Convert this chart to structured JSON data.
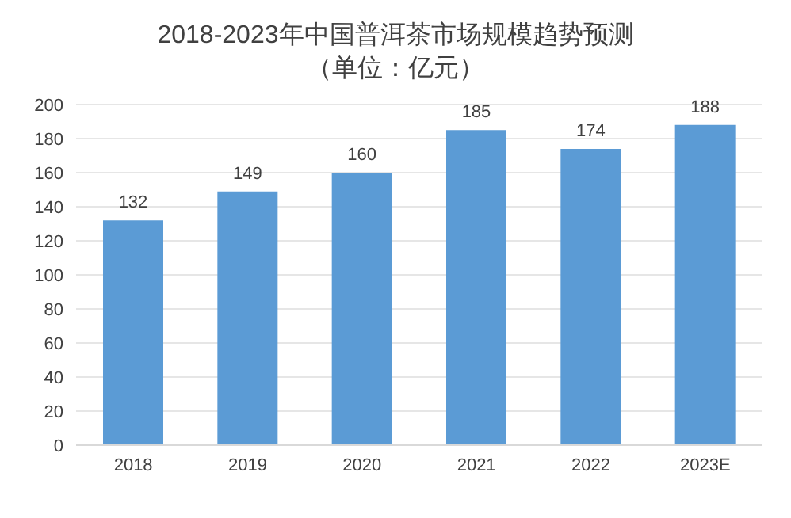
{
  "chart_data": {
    "type": "bar",
    "title": "2018-2023年中国普洱茶市场规模趋势预测",
    "subtitle": "（单位：亿元）",
    "categories": [
      "2018",
      "2019",
      "2020",
      "2021",
      "2022",
      "2023E"
    ],
    "values": [
      132,
      149,
      160,
      185,
      174,
      188
    ],
    "color": "#5b9bd5",
    "ylim": [
      0,
      200
    ],
    "yticks": [
      0,
      20,
      40,
      60,
      80,
      100,
      120,
      140,
      160,
      180,
      200
    ],
    "grid": "y",
    "data_labels": true
  }
}
